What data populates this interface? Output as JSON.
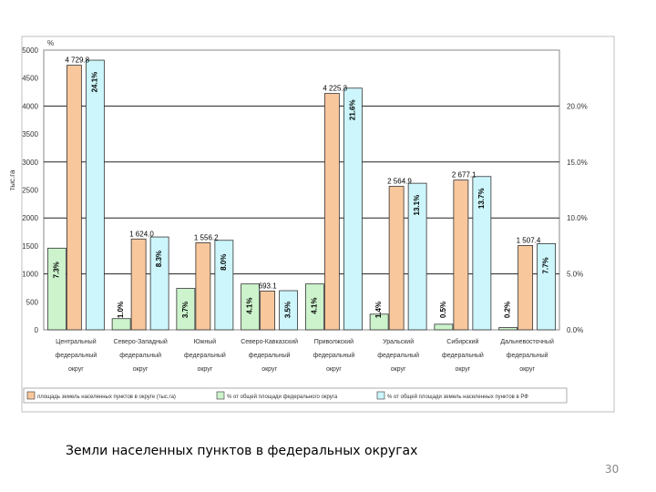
{
  "chart_data": {
    "type": "bar",
    "title": "",
    "unit_label": "%",
    "ylabel": "тыс.га",
    "ylim": [
      0,
      5000
    ],
    "yticks": [
      0,
      500,
      1000,
      1500,
      2000,
      2500,
      3000,
      3500,
      4000,
      4500,
      5000
    ],
    "y2lim": [
      0,
      25
    ],
    "y2ticks": [
      {
        "value": 0,
        "label": "0.0%"
      },
      {
        "value": 5,
        "label": "5.0%"
      },
      {
        "value": 10,
        "label": "10.0%"
      },
      {
        "value": 15,
        "label": "15.0%"
      },
      {
        "value": 20,
        "label": "20.0%"
      }
    ],
    "grid": true,
    "legend_position": "bottom",
    "categories": [
      "Центральный федеральный округ",
      "Северо-Западный федеральный округ",
      "Южный федеральный округ",
      "Северо-Кавказский федеральный округ",
      "Приволжский федеральный округ",
      "Уральский федеральный округ",
      "Сибирский федеральный округ",
      "Дальневосточный федеральный округ"
    ],
    "series": [
      {
        "name": "площадь земель населенных пунктов в округе (тыс.га)",
        "axis": "left",
        "color": "#F9C79C",
        "values": [
          4729.8,
          1624.0,
          1556.2,
          693.1,
          4225.3,
          2564.9,
          2677.1,
          1507.4
        ],
        "labels": [
          "4 729.8",
          "1 624.0",
          "1 556.2",
          "693.1",
          "4 225.3",
          "2 564.9",
          "2 677.1",
          "1 507.4"
        ]
      },
      {
        "name": "% от общей площади федерального округа",
        "axis": "right",
        "color": "#CCF3CC",
        "values": [
          7.3,
          1.0,
          3.7,
          4.1,
          4.1,
          1.4,
          0.5,
          0.2
        ],
        "labels": [
          "7.3%",
          "1.0%",
          "3.7%",
          "4.1%",
          "4.1%",
          "1.4%",
          "0.5%",
          "0.2%"
        ]
      },
      {
        "name": "% от общей площади земель населенных пунктов в РФ",
        "axis": "right",
        "color": "#CCF6FC",
        "values": [
          24.1,
          8.3,
          8.0,
          3.5,
          21.6,
          13.1,
          13.7,
          7.7
        ],
        "labels": [
          "24.1%",
          "8.3%",
          "8.0%",
          "3.5%",
          "21.6%",
          "13.1%",
          "13.7%",
          "7.7%"
        ]
      }
    ]
  },
  "caption": "Земли населенных пунктов в федеральных округах",
  "slide_number": "30"
}
